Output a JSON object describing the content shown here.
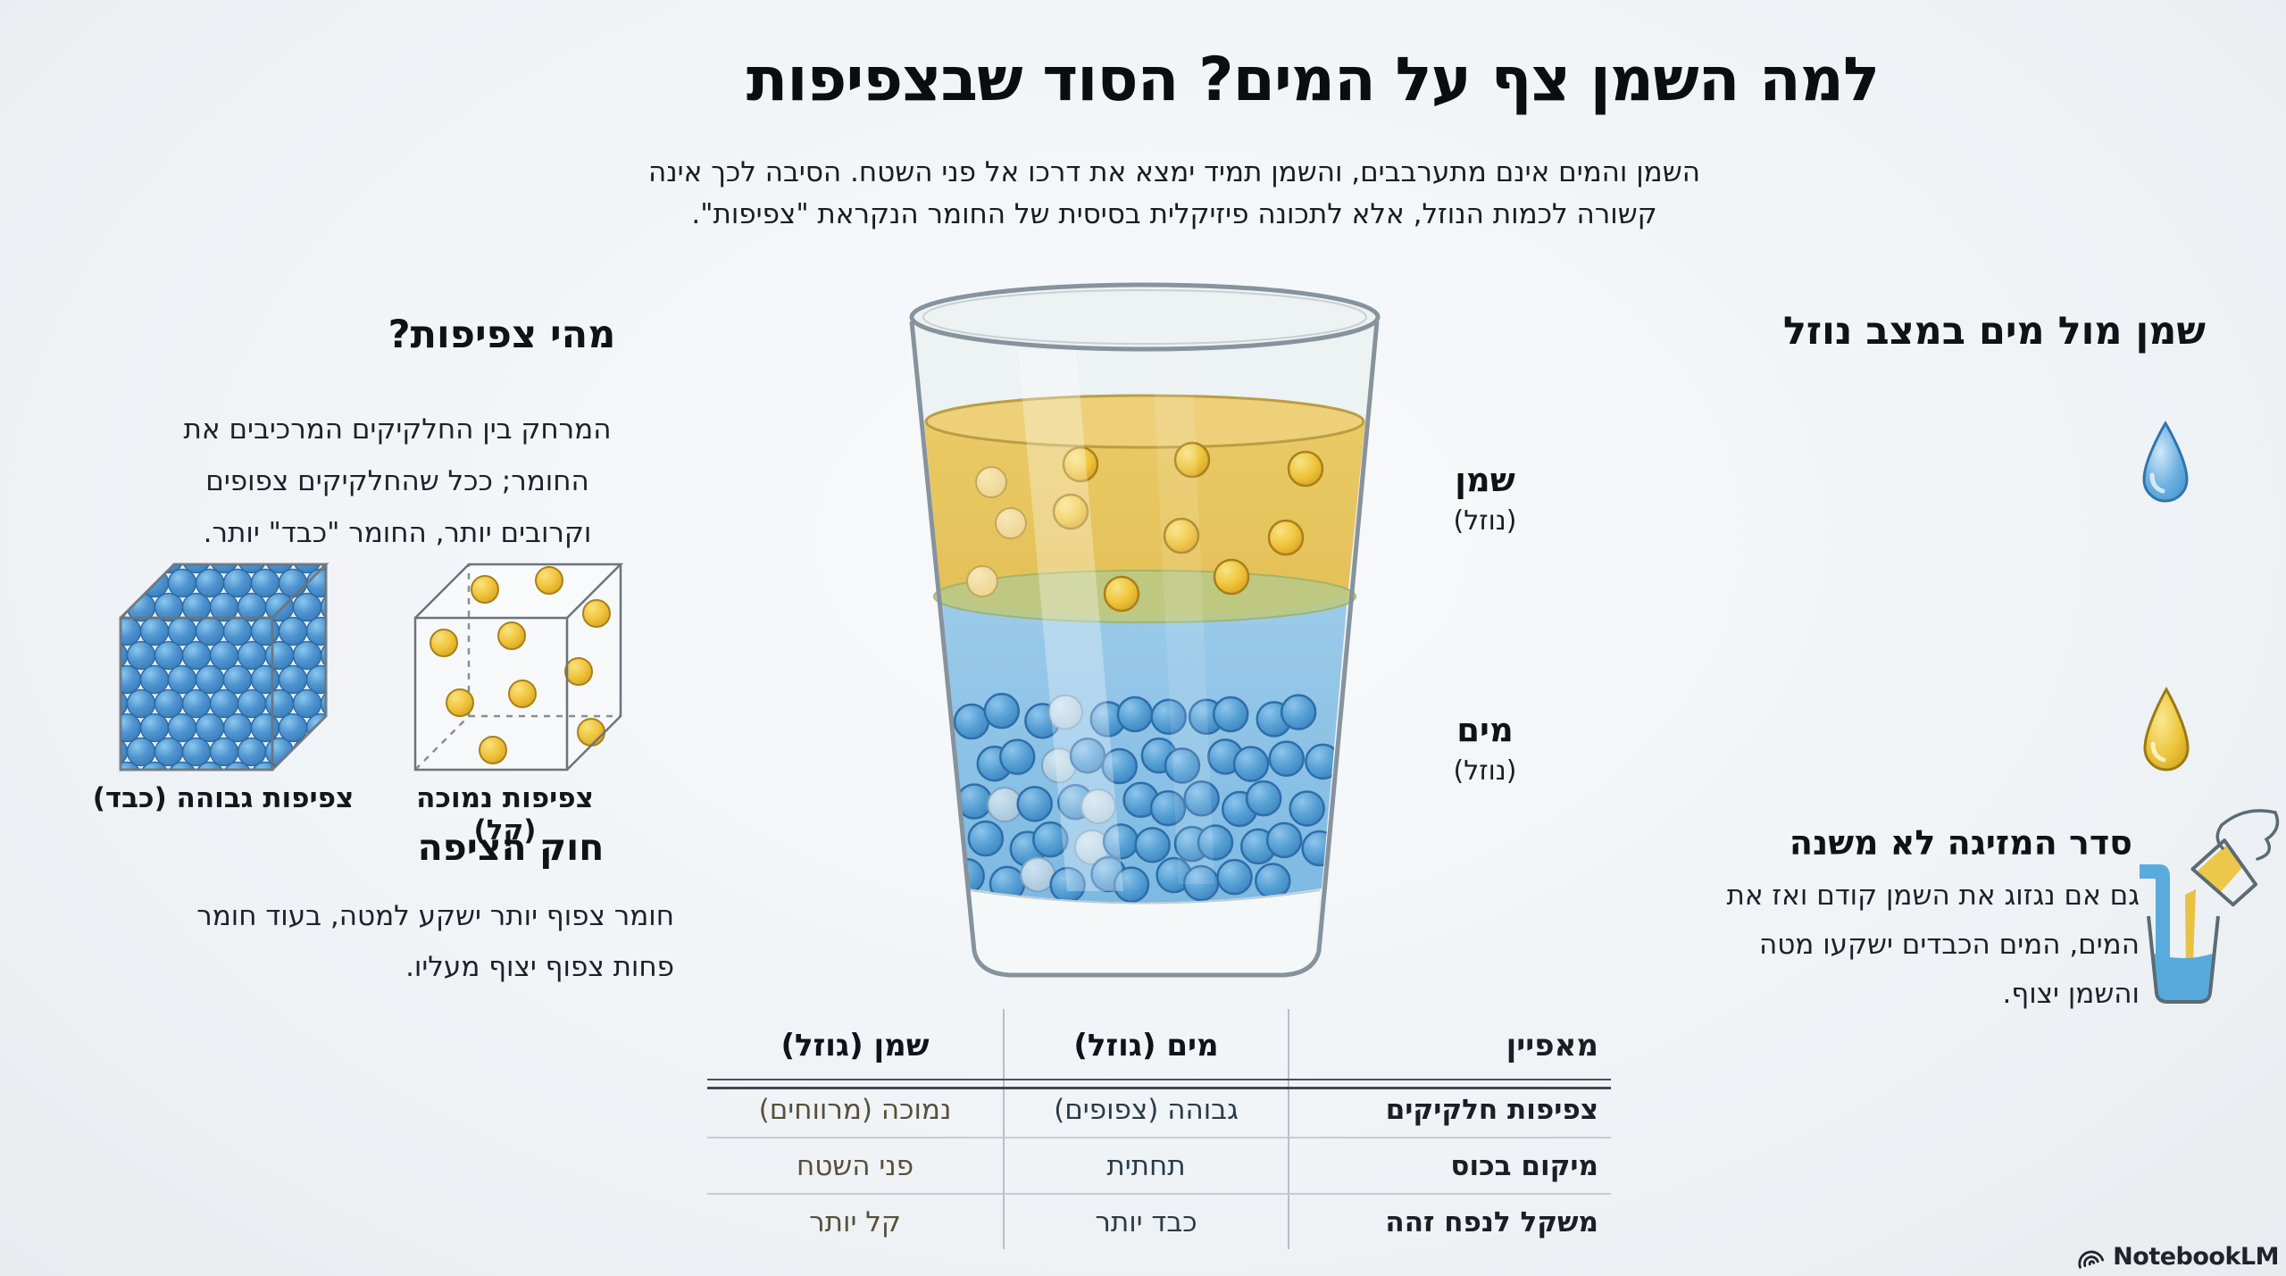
{
  "page": {
    "title": "למה השמן צף על המים? הסוד שבצפיפות",
    "subtitle_lines": [
      "השמן והמים אינם מתערבבים, והשמן תמיד ימצא את דרכו אל פני השטח. הסיבה לכך אינה",
      "קשורה לכמות הנוזל, אלא לתכונה פיזיקלית בסיסית של החומר הנקראת \"צפיפות\"."
    ]
  },
  "density_section": {
    "heading": "מהי צפיפות?",
    "body_lines": [
      "המרחק בין החלקיקים המרכיבים את",
      "החומר; ככל שהחלקיקים צפופים",
      "וקרובים יותר, החומר \"כבד\" יותר."
    ],
    "high_density_caption": "צפיפות גבוהה (כבד)",
    "low_density_caption": "צפיפות נמוכה (קל)"
  },
  "flotation_section": {
    "heading": "חוק הציפה",
    "body_lines": [
      "חומר צפוף יותר ישקע למטה, בעוד חומר",
      "פחות צפוף יצוף מעליו."
    ]
  },
  "glass": {
    "oil_label": "שמן",
    "oil_sublabel": "(נוזל)",
    "water_label": "מים",
    "water_sublabel": "(נוזל)"
  },
  "liquid_state_section": {
    "heading": "שמן מול מים במצב נוזל",
    "icons": [
      "water-drop",
      "oil-drop"
    ]
  },
  "pouring_section": {
    "heading": "סדר המזיגה לא משנה",
    "body_lines": [
      "גם אם נגזוג את השמן קודם ואז את",
      "המים, המים הכבדים ישקעו מטה",
      "והשמן יצוף."
    ]
  },
  "table": {
    "headers": {
      "feature": "מאפיין",
      "water": "מים (גוזל)",
      "oil": "שמן (גוזל)"
    },
    "rows": [
      {
        "feature": "צפיפות חלקיקים",
        "water": "גבוהה (צפופים)",
        "oil": "נמוכה (מרווחים)"
      },
      {
        "feature": "מיקום בכוס",
        "water": "תחתית",
        "oil": "פני השטח"
      },
      {
        "feature": "משקל לנפח זהה",
        "water": "כבד יותר",
        "oil": "קל יותר"
      }
    ]
  },
  "footer": {
    "brand": "NotebookLM"
  },
  "colors": {
    "background": "#f1f4f7",
    "oil": "#e8c55e",
    "water": "#8cc0e6",
    "oil_sphere": "#eec548",
    "water_sphere": "#57a0d4",
    "interface_band": "#bcc985",
    "glass_outline": "#87939c",
    "text": "#14161a"
  }
}
